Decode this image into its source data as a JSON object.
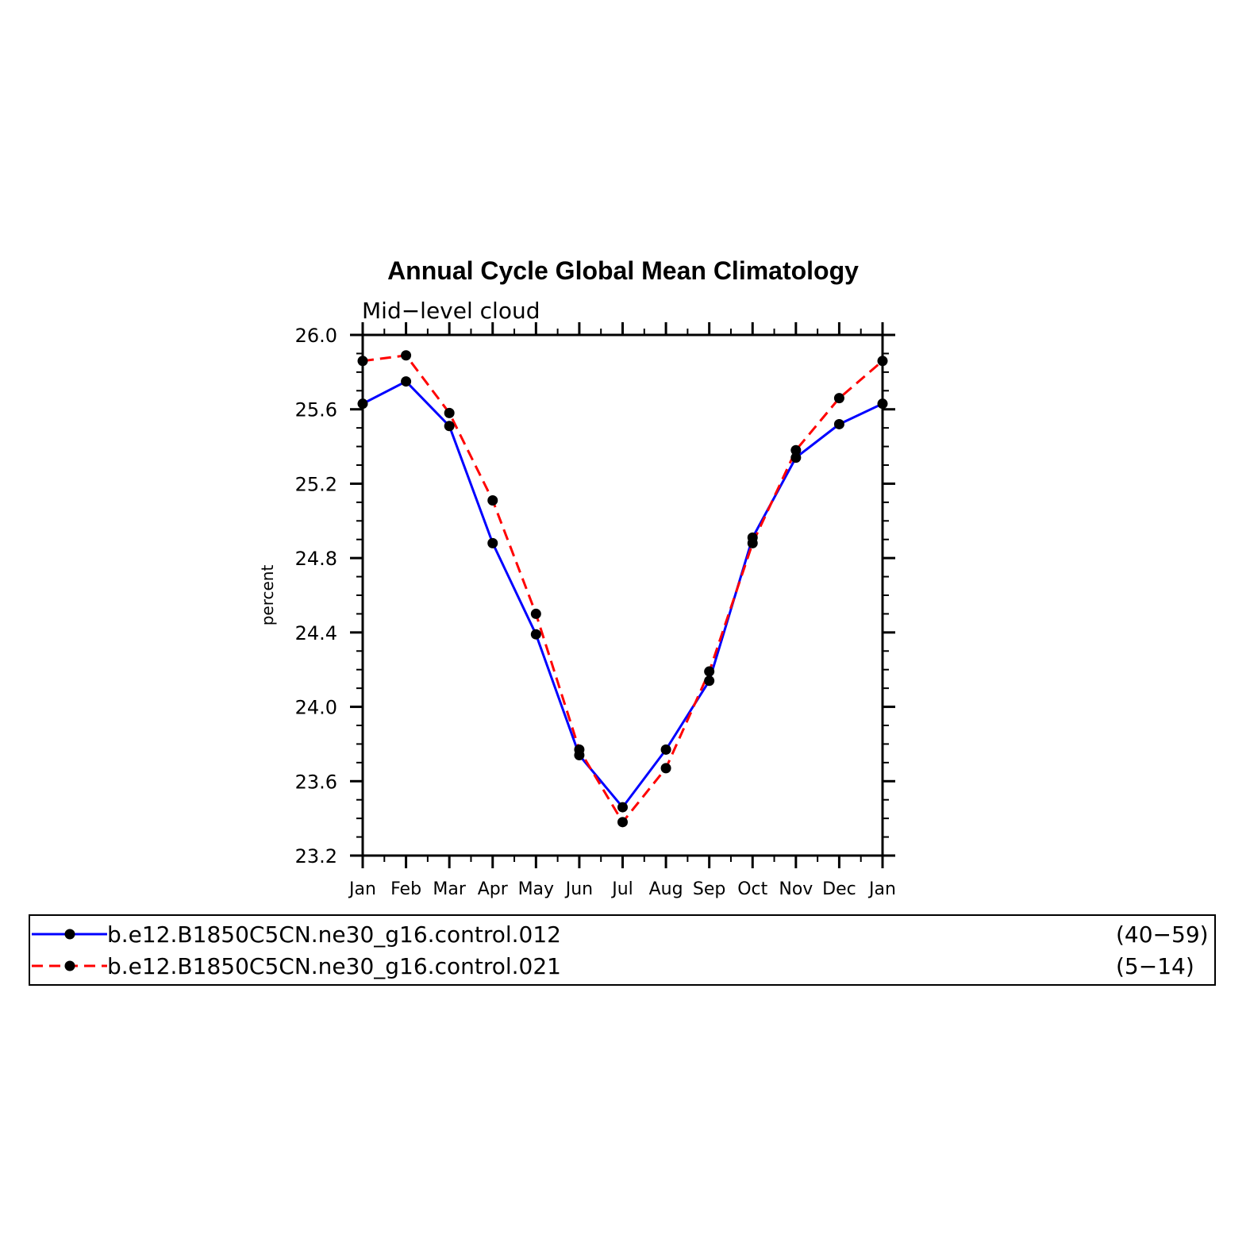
{
  "chart_data": {
    "type": "line",
    "title": "Annual Cycle Global Mean Climatology",
    "subtitle": "Mid−level  cloud",
    "ylabel": "percent",
    "xlabel": "",
    "categories": [
      "Jan",
      "Feb",
      "Mar",
      "Apr",
      "May",
      "Jun",
      "Jul",
      "Aug",
      "Sep",
      "Oct",
      "Nov",
      "Dec",
      "Jan"
    ],
    "yticks": [
      "23.2",
      "23.6",
      "24.0",
      "24.4",
      "24.8",
      "25.2",
      "25.6",
      "26.0"
    ],
    "ylim": [
      23.2,
      26.0
    ],
    "grid": false,
    "legend_position": "bottom",
    "series": [
      {
        "name": "b.e12.B1850C5CN.ne30_g16.control.012",
        "years": "(40−59)",
        "color": "#0000ff",
        "dash": "solid",
        "marker": "circle",
        "values": [
          25.63,
          25.75,
          25.51,
          24.88,
          24.39,
          23.74,
          23.46,
          23.77,
          24.14,
          24.91,
          25.34,
          25.52,
          25.63
        ]
      },
      {
        "name": "b.e12.B1850C5CN.ne30_g16.control.021",
        "years": "(5−14)",
        "color": "#ff0000",
        "dash": "dashed",
        "marker": "circle",
        "values": [
          25.86,
          25.89,
          25.58,
          25.11,
          24.5,
          23.77,
          23.38,
          23.67,
          24.19,
          24.88,
          25.38,
          25.66,
          25.86
        ]
      }
    ]
  }
}
